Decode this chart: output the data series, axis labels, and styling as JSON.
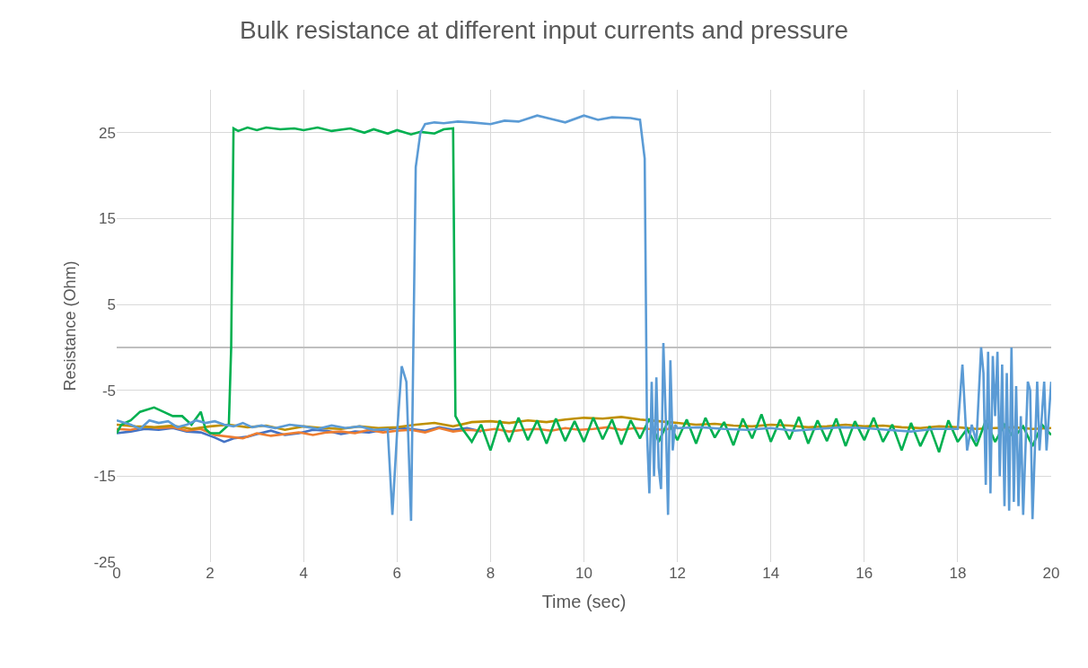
{
  "chart_data": {
    "type": "line",
    "title": "Bulk resistance at different input currents and pressure",
    "xlabel": "Time (sec)",
    "ylabel": "Resistance (Ohm)",
    "xlim": [
      0,
      20
    ],
    "xticks": [
      0,
      2,
      4,
      6,
      8,
      10,
      12,
      14,
      16,
      18,
      20
    ],
    "ylim": [
      -25,
      30
    ],
    "yticks": [
      -25,
      -15,
      -5,
      5,
      15,
      25
    ],
    "grid": true,
    "marker": "none",
    "line_style": "solid",
    "series": [
      {
        "color": "#4472c4",
        "x": [
          0,
          0.3,
          0.6,
          0.9,
          1.2,
          1.5,
          1.8,
          2.1,
          2.3,
          2.5,
          2.8,
          3.0,
          3.3,
          3.6,
          3.9,
          4.2,
          4.5,
          4.8,
          5.1,
          5.4,
          5.7,
          6.0,
          6.3,
          6.6,
          6.9,
          7.2,
          7.5,
          7.8
        ],
        "values": [
          -10,
          -9.8,
          -9.5,
          -9.6,
          -9.4,
          -9.8,
          -9.9,
          -10.5,
          -11,
          -10.6,
          -10.4,
          -10.1,
          -9.7,
          -10.2,
          -10,
          -9.6,
          -9.7,
          -10.1,
          -9.8,
          -9.9,
          -9.6,
          -9.4,
          -9.5,
          -9.7,
          -9.3,
          -9.6,
          -9.4,
          -9.8
        ]
      },
      {
        "color": "#ed7d31",
        "x": [
          0,
          0.3,
          0.6,
          0.9,
          1.2,
          1.5,
          1.8,
          2.1,
          2.4,
          2.7,
          3.0,
          3.3,
          3.6,
          3.9,
          4.2,
          4.5,
          4.8,
          5.1,
          5.4,
          5.7,
          6.0,
          6.3,
          6.6,
          6.9,
          7.2,
          7.5,
          7.8,
          8.1,
          8.4,
          8.7,
          9.0,
          9.3,
          9.6,
          9.9,
          10.2,
          10.5,
          10.8,
          11.1,
          11.4,
          11.7,
          12.0
        ],
        "values": [
          -9.5,
          -9.6,
          -9.2,
          -9.4,
          -9.3,
          -9.7,
          -9.5,
          -10.2,
          -10.4,
          -10.6,
          -10,
          -10.3,
          -10.1,
          -9.9,
          -10.2,
          -9.9,
          -9.8,
          -10,
          -9.6,
          -9.9,
          -9.7,
          -9.6,
          -9.9,
          -9.4,
          -9.8,
          -9.6,
          -9.7,
          -9.5,
          -9.8,
          -9.6,
          -9.5,
          -9.7,
          -9.4,
          -9.6,
          -9.5,
          -9.3,
          -9.6,
          -9.4,
          -9.5,
          -9.6,
          -9.3
        ]
      },
      {
        "color": "#bf9000",
        "x": [
          0,
          0.4,
          0.8,
          1.2,
          1.6,
          2.0,
          2.4,
          2.8,
          3.2,
          3.6,
          4.0,
          4.4,
          4.8,
          5.2,
          5.6,
          6.0,
          6.4,
          6.8,
          7.2,
          7.6,
          8.0,
          8.4,
          8.8,
          9.2,
          9.6,
          10.0,
          10.4,
          10.8,
          11.2,
          11.6,
          12.0,
          12.4,
          12.8,
          13.2,
          13.6,
          14.0,
          14.4,
          14.8,
          15.2,
          15.6,
          16.0,
          16.4,
          16.8,
          17.2,
          17.6,
          18.0,
          18.4,
          18.8,
          19.2,
          19.6,
          20.0
        ],
        "values": [
          -9,
          -9.2,
          -9.3,
          -9.1,
          -9.5,
          -9.2,
          -9,
          -9.3,
          -9.1,
          -9.6,
          -9.2,
          -9.4,
          -9.5,
          -9.2,
          -9.4,
          -9.3,
          -9,
          -8.8,
          -9.2,
          -8.7,
          -8.6,
          -8.8,
          -8.5,
          -8.7,
          -8.4,
          -8.2,
          -8.3,
          -8.1,
          -8.4,
          -8.6,
          -8.8,
          -9,
          -8.9,
          -9.1,
          -9.2,
          -9,
          -9.1,
          -9.3,
          -9.2,
          -9,
          -9.2,
          -9.1,
          -9.3,
          -9.4,
          -9.2,
          -9.3,
          -9.5,
          -9.4,
          -9.3,
          -9.5,
          -9.4
        ]
      },
      {
        "color": "#00b050",
        "x": [
          0,
          0.1,
          0.3,
          0.5,
          0.8,
          1.0,
          1.2,
          1.4,
          1.6,
          1.8,
          1.9,
          2.0,
          2.2,
          2.4,
          2.45,
          2.5,
          2.6,
          2.8,
          3.0,
          3.2,
          3.5,
          3.8,
          4.0,
          4.3,
          4.6,
          5.0,
          5.3,
          5.5,
          5.8,
          6.0,
          6.3,
          6.5,
          6.8,
          7.0,
          7.2,
          7.25,
          7.4,
          7.6,
          7.8,
          8.0,
          8.2,
          8.4,
          8.6,
          8.8,
          9.0,
          9.2,
          9.4,
          9.6,
          9.8,
          10.0,
          10.2,
          10.4,
          10.6,
          10.8,
          11.0,
          11.2,
          11.4,
          11.6,
          11.8,
          12.0,
          12.2,
          12.4,
          12.6,
          12.8,
          13.0,
          13.2,
          13.4,
          13.6,
          13.8,
          14.0,
          14.2,
          14.4,
          14.6,
          14.8,
          15.0,
          15.2,
          15.4,
          15.6,
          15.8,
          16.0,
          16.2,
          16.4,
          16.6,
          16.8,
          17.0,
          17.2,
          17.4,
          17.6,
          17.8,
          18.0,
          18.2,
          18.4,
          18.6,
          18.8,
          19.0,
          19.2,
          19.4,
          19.6,
          19.8,
          20.0
        ],
        "values": [
          -10,
          -9,
          -8.5,
          -7.5,
          -7,
          -7.5,
          -8,
          -8,
          -9,
          -7.5,
          -9.5,
          -10,
          -10,
          -9,
          0,
          25.5,
          25.2,
          25.6,
          25.3,
          25.6,
          25.4,
          25.5,
          25.3,
          25.6,
          25.2,
          25.5,
          25,
          25.4,
          24.9,
          25.3,
          24.8,
          25.1,
          24.9,
          25.4,
          25.5,
          -8,
          -9.5,
          -11,
          -9,
          -12,
          -8.5,
          -11,
          -8.2,
          -10.8,
          -8.5,
          -11.2,
          -8.3,
          -10.9,
          -8.6,
          -11,
          -8.2,
          -10.7,
          -8.4,
          -11.3,
          -8.5,
          -10.6,
          -8.3,
          -11,
          -8.6,
          -10.8,
          -8.4,
          -11.2,
          -8.2,
          -10.5,
          -8.7,
          -11.4,
          -8.3,
          -10.6,
          -7.8,
          -11,
          -8.4,
          -10.7,
          -8.1,
          -11.2,
          -8.5,
          -10.9,
          -8.3,
          -11.5,
          -8.6,
          -10.8,
          -8.2,
          -11,
          -9,
          -12,
          -8.8,
          -11.5,
          -9.2,
          -12.2,
          -8.5,
          -11,
          -9.5,
          -11.5,
          -8.5,
          -11,
          -9,
          -10.5,
          -9.2,
          -11.5,
          -9,
          -10.2
        ]
      },
      {
        "color": "#5b9bd5",
        "x": [
          0,
          0.3,
          0.5,
          0.7,
          0.9,
          1.1,
          1.3,
          1.5,
          1.7,
          1.9,
          2.1,
          2.3,
          2.5,
          2.7,
          2.9,
          3.1,
          3.4,
          3.7,
          4.0,
          4.3,
          4.6,
          4.9,
          5.2,
          5.5,
          5.8,
          5.9,
          6.0,
          6.1,
          6.2,
          6.3,
          6.4,
          6.5,
          6.6,
          6.8,
          7.0,
          7.3,
          7.6,
          8.0,
          8.3,
          8.6,
          9.0,
          9.3,
          9.6,
          10.0,
          10.3,
          10.6,
          11.0,
          11.2,
          11.3,
          11.35,
          11.4,
          11.45,
          11.5,
          11.55,
          11.6,
          11.65,
          11.7,
          11.75,
          11.8,
          11.85,
          11.9,
          11.95,
          12.0,
          12.5,
          13.0,
          13.5,
          14.0,
          14.5,
          15.0,
          15.5,
          16.0,
          16.5,
          17.0,
          17.5,
          18.0,
          18.1,
          18.2,
          18.3,
          18.4,
          18.5,
          18.55,
          18.6,
          18.65,
          18.7,
          18.75,
          18.8,
          18.85,
          18.9,
          18.95,
          19.0,
          19.05,
          19.1,
          19.15,
          19.2,
          19.25,
          19.3,
          19.35,
          19.4,
          19.5,
          19.55,
          19.6,
          19.7,
          19.75,
          19.85,
          19.9,
          20.0
        ],
        "values": [
          -8.5,
          -9,
          -9.5,
          -8.5,
          -8.8,
          -8.6,
          -9.3,
          -9,
          -8.5,
          -8.8,
          -8.6,
          -9,
          -9.2,
          -8.8,
          -9.3,
          -9.1,
          -9.4,
          -9,
          -9.2,
          -9.5,
          -9.1,
          -9.4,
          -9.2,
          -9.6,
          -9.5,
          -19.5,
          -10,
          -2.2,
          -4,
          -20.2,
          21,
          25,
          26,
          26.2,
          26.1,
          26.3,
          26.2,
          26,
          26.4,
          26.3,
          27,
          26.6,
          26.2,
          27,
          26.5,
          26.8,
          26.7,
          26.5,
          22,
          -10,
          -17,
          -4,
          -15,
          -3.5,
          -14,
          -16.5,
          0.5,
          -8,
          -19.5,
          -1.5,
          -12,
          -9,
          -9.4,
          -9.3,
          -9.5,
          -9.6,
          -9.4,
          -9.7,
          -9.5,
          -9.3,
          -9.4,
          -9.6,
          -9.8,
          -9.5,
          -9.5,
          -2,
          -12,
          -9,
          -11,
          0,
          -3,
          -16,
          -0.5,
          -17,
          -1,
          -8,
          -0.5,
          -15,
          -2,
          -18.5,
          -3,
          -19,
          0,
          -18,
          -4.5,
          -18.5,
          -8,
          -19.5,
          -4,
          -5,
          -20,
          -4,
          -12,
          -4,
          -12,
          -4
        ]
      }
    ]
  }
}
